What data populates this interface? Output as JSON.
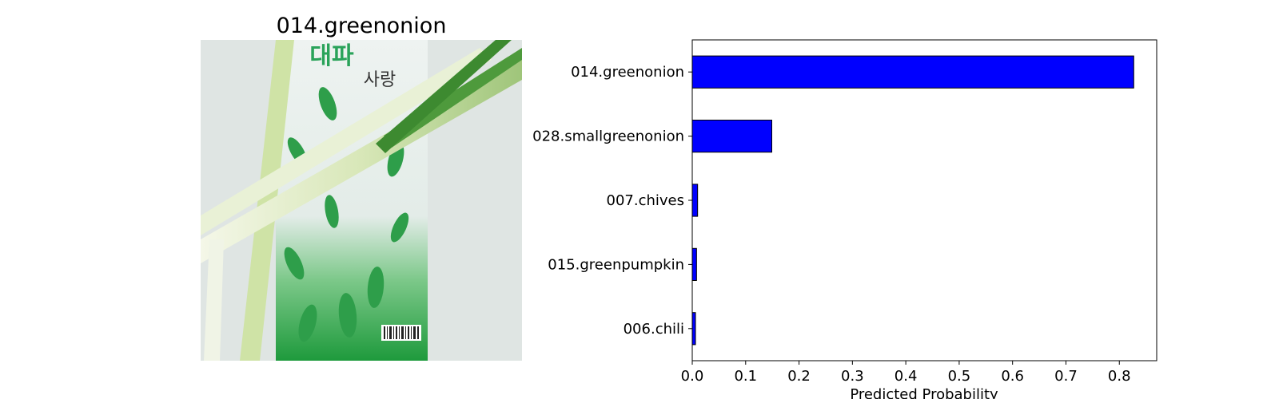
{
  "image_panel": {
    "title": "014.greenonion",
    "photo_text_line1": "대파",
    "photo_text_line2": "사랑"
  },
  "colors": {
    "bar_fill": "#0000ff",
    "bar_edge": "#000000",
    "background": "#ffffff"
  },
  "chart_data": {
    "type": "bar",
    "orientation": "horizontal",
    "categories": [
      "014.greenonion",
      "028.smallgreenonion",
      "007.chives",
      "015.greenpumpkin",
      "006.chili"
    ],
    "values": [
      0.827,
      0.149,
      0.01,
      0.008,
      0.006
    ],
    "title": "",
    "xlabel": "Predicted Probability",
    "ylabel": "",
    "xlim": [
      0,
      0.87
    ],
    "xticks": [
      0.0,
      0.1,
      0.2,
      0.3,
      0.4,
      0.5,
      0.6,
      0.7,
      0.8
    ],
    "xtick_labels": [
      "0.0",
      "0.1",
      "0.2",
      "0.3",
      "0.4",
      "0.5",
      "0.6",
      "0.7",
      "0.8"
    ],
    "grid": false,
    "legend": "none"
  }
}
